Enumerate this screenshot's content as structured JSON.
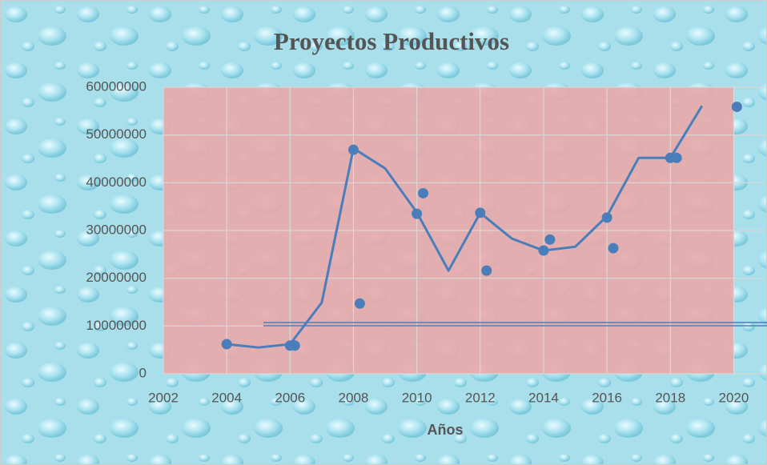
{
  "chart_data": {
    "type": "scatter",
    "title": "Proyectos Productivos",
    "x_label": "Años",
    "xlim": [
      2002,
      2021
    ],
    "xticks": [
      2002,
      2004,
      2006,
      2008,
      2010,
      2012,
      2014,
      2016,
      2018,
      2020
    ],
    "ylim": [
      0,
      60000000
    ],
    "yticks": [
      0,
      10000000,
      20000000,
      30000000,
      40000000,
      50000000,
      60000000
    ],
    "grid": true,
    "series": [
      {
        "mode": "markers",
        "color": "#4a7ebb",
        "x": [
          2004,
          2006,
          2006.15,
          2008,
          2008.2,
          2010,
          2010.2,
          2012,
          2012.2,
          2014,
          2014.2,
          2016,
          2016.2,
          2018,
          2018.2,
          2020.1
        ],
        "values": [
          6200000,
          5900000,
          5900000,
          46900000,
          14700000,
          33500000,
          37800000,
          33700000,
          21600000,
          25800000,
          28100000,
          32700000,
          26300000,
          45200000,
          45200000,
          55900000
        ]
      },
      {
        "mode": "line",
        "color": "#4a7ebb",
        "x": [
          2004,
          2005,
          2006,
          2007,
          2008,
          2009,
          2010,
          2011,
          2012,
          2013,
          2014,
          2015,
          2016,
          2017,
          2018,
          2019
        ],
        "values": [
          6200000,
          5500000,
          6200000,
          14900000,
          47200000,
          43000000,
          33800000,
          21600000,
          33700000,
          28300000,
          25800000,
          26600000,
          33000000,
          45200000,
          45200000,
          56100000
        ]
      }
    ]
  }
}
